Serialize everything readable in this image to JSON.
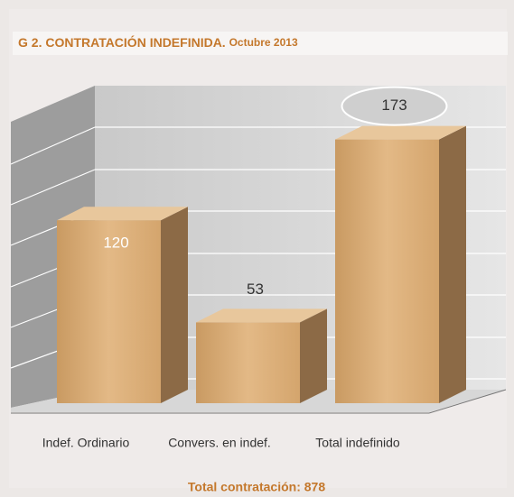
{
  "chart_data": {
    "type": "bar",
    "title": "G 2. CONTRATACIÓN INDEFINIDA.",
    "subtitle": "Octubre 2013",
    "categories": [
      "Indef. Ordinario",
      "Convers. en indef.",
      "Total indefinido"
    ],
    "values": [
      120,
      53,
      173
    ],
    "color": "#d8a96f",
    "ylim": [
      0,
      200
    ],
    "annotation": "Total contratación: 878"
  }
}
